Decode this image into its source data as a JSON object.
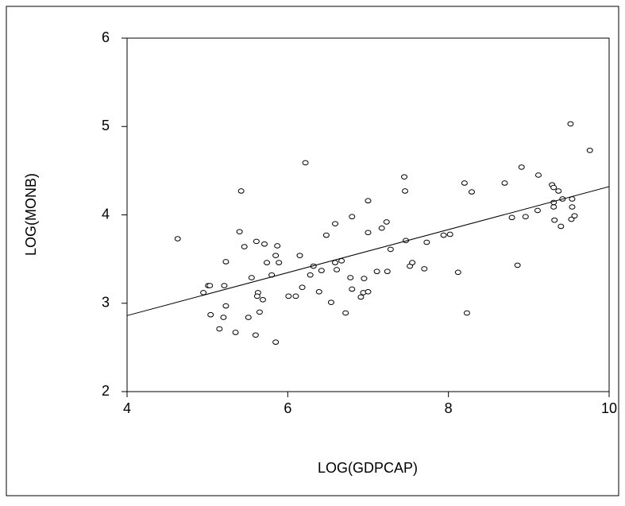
{
  "chart_data": {
    "type": "scatter",
    "xlabel": "LOG(GDPCAP)",
    "ylabel": "LOG(MONB)",
    "xlim": [
      4,
      10
    ],
    "ylim": [
      2,
      6
    ],
    "xticks": [
      4,
      6,
      8,
      10
    ],
    "yticks": [
      2,
      3,
      4,
      5,
      6
    ],
    "color": "#000000",
    "x": [
      4.63,
      4.95,
      5.01,
      5.03,
      5.04,
      5.15,
      5.2,
      5.23,
      5.21,
      5.23,
      5.35,
      5.4,
      5.42,
      5.46,
      5.51,
      5.55,
      5.6,
      5.61,
      5.63,
      5.62,
      5.65,
      5.69,
      5.71,
      5.74,
      5.8,
      5.85,
      5.87,
      5.85,
      5.89,
      6.01,
      6.1,
      6.15,
      6.18,
      6.22,
      6.28,
      6.32,
      6.39,
      6.42,
      6.48,
      6.54,
      6.59,
      6.59,
      6.61,
      6.67,
      6.72,
      6.78,
      6.8,
      6.8,
      6.91,
      6.94,
      6.95,
      7.0,
      7.0,
      7.0,
      7.11,
      7.17,
      7.23,
      7.24,
      7.28,
      7.45,
      7.46,
      7.47,
      7.52,
      7.55,
      7.7,
      7.73,
      7.94,
      8.02,
      8.12,
      8.2,
      8.23,
      8.29,
      8.7,
      8.79,
      8.86,
      8.91,
      8.96,
      9.12,
      9.11,
      9.29,
      9.31,
      9.31,
      9.31,
      9.32,
      9.37,
      9.4,
      9.42,
      9.52,
      9.53,
      9.54,
      9.54,
      9.57,
      9.76
    ],
    "y": [
      3.73,
      3.12,
      3.2,
      3.2,
      2.87,
      2.71,
      2.84,
      2.97,
      3.2,
      3.47,
      2.67,
      3.81,
      4.27,
      3.64,
      2.84,
      3.29,
      2.64,
      3.7,
      3.12,
      3.08,
      2.9,
      3.04,
      3.67,
      3.46,
      3.32,
      3.54,
      3.65,
      2.56,
      3.46,
      3.08,
      3.08,
      3.54,
      3.18,
      4.59,
      3.32,
      3.42,
      3.13,
      3.37,
      3.77,
      3.01,
      3.9,
      3.46,
      3.38,
      3.48,
      2.89,
      3.29,
      3.98,
      3.16,
      3.07,
      3.12,
      3.28,
      4.16,
      3.8,
      3.13,
      3.36,
      3.85,
      3.92,
      3.36,
      3.61,
      4.43,
      4.27,
      3.71,
      3.42,
      3.46,
      3.39,
      3.69,
      3.77,
      3.78,
      3.35,
      4.36,
      2.89,
      4.26,
      4.36,
      3.97,
      3.43,
      4.54,
      3.98,
      4.45,
      4.05,
      4.34,
      4.31,
      4.14,
      4.09,
      3.94,
      4.27,
      3.87,
      4.18,
      5.03,
      3.95,
      4.18,
      4.09,
      3.99,
      4.73
    ],
    "fit_line": {
      "x": [
        4,
        10
      ],
      "y": [
        2.86,
        4.32
      ]
    }
  }
}
